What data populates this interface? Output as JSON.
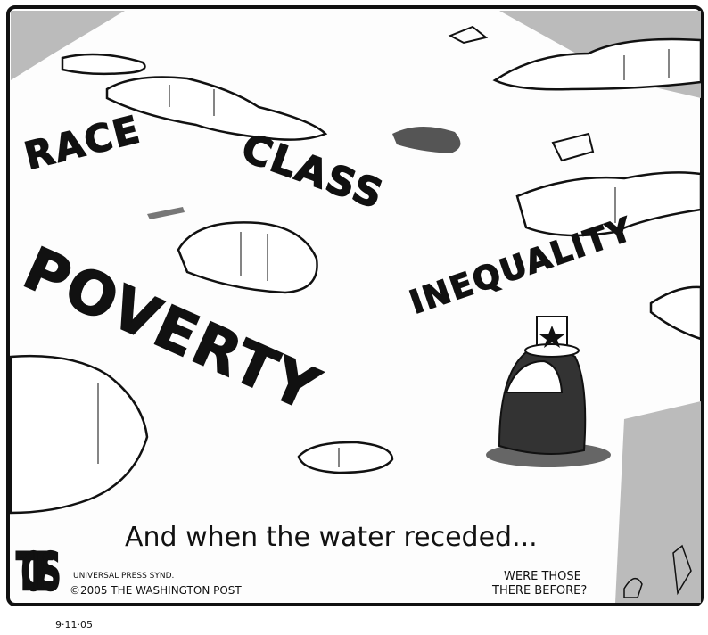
{
  "cartoon": {
    "words": {
      "race": "RACE",
      "class": "CLASS",
      "poverty": "POVERTY",
      "inequality": "INEQUALITY"
    },
    "caption": "And when the water receded...",
    "signature": "TOLES",
    "credit": {
      "syndicate": "UNIVERSAL PRESS SYND.",
      "copyright": "©2005 THE WASHINGTON POST"
    },
    "aside": {
      "line1": "WERE THOSE",
      "line2": "THERE BEFORE?"
    },
    "date": "9·11·05"
  }
}
